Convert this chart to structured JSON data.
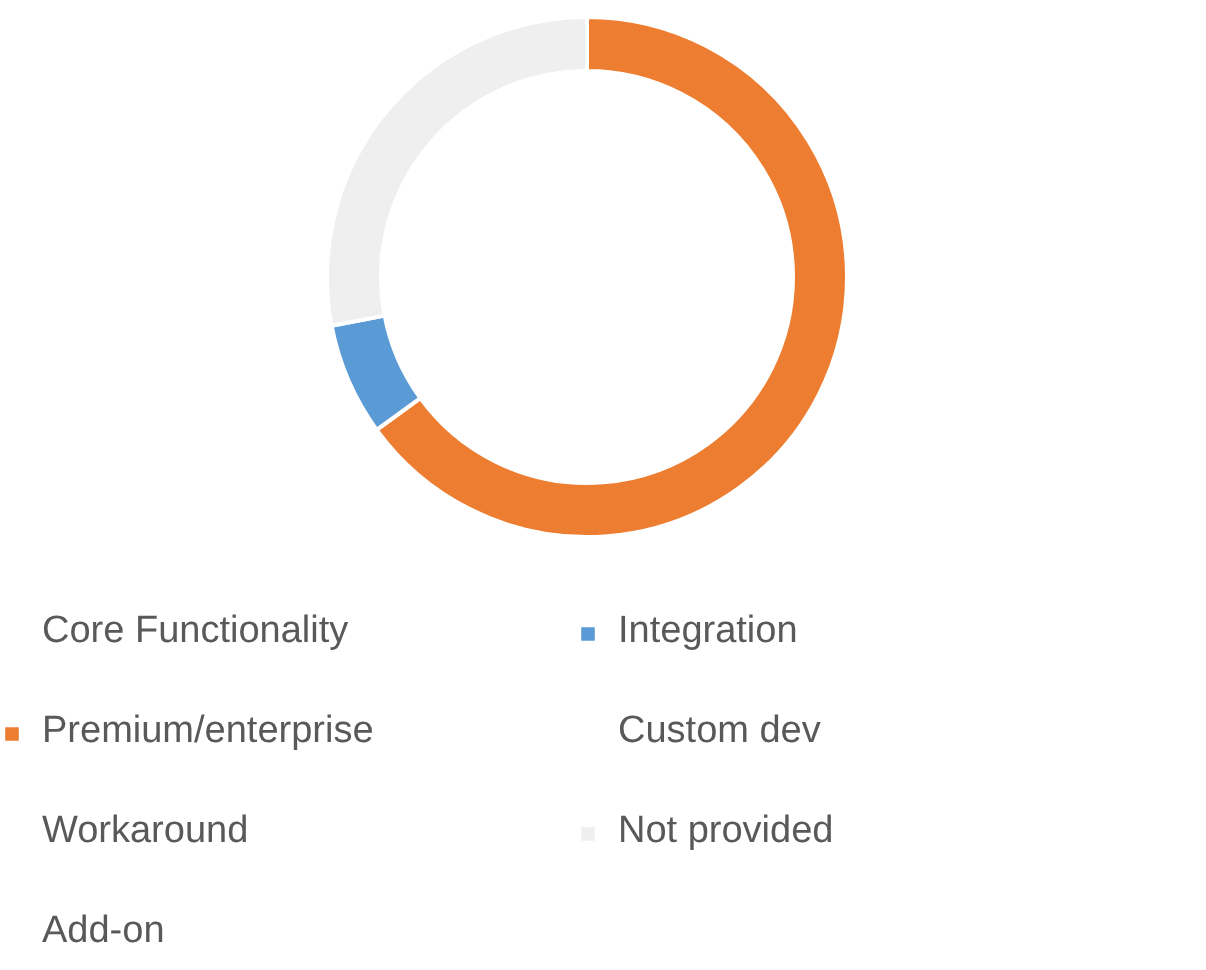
{
  "chart_data": {
    "type": "donut",
    "categories": [
      "Core Functionality",
      "Premium/enterprise",
      "Workaround",
      "Add-on",
      "Integration",
      "Custom dev",
      "Not provided"
    ],
    "values": [
      0,
      65,
      0,
      0,
      7,
      0,
      28
    ],
    "colors": [
      "#4472c4",
      "#ed7d31",
      "#c00000",
      "#ffc000",
      "#5b9bd5",
      "#70ad47",
      "#efefef"
    ],
    "legend": "bottom"
  }
}
